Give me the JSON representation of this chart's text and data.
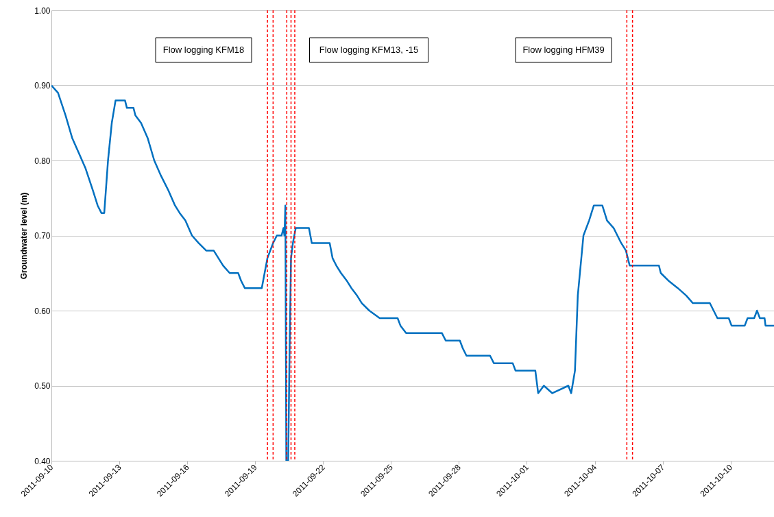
{
  "chart_data": {
    "type": "line",
    "ylabel": "Groundwater level (m)",
    "x": [
      "2011-09-10T00:00",
      "2011-09-10T07:00",
      "2011-09-10T15:00",
      "2011-09-10T22:00",
      "2011-09-11T05:00",
      "2011-09-11T12:00",
      "2011-09-11T20:00",
      "2011-09-12T01:00",
      "2011-09-12T05:00",
      "2011-09-12T08:00",
      "2011-09-12T12:00",
      "2011-09-12T16:00",
      "2011-09-12T20:00",
      "2011-09-13T06:00",
      "2011-09-13T08:00",
      "2011-09-13T15:00",
      "2011-09-13T17:00",
      "2011-09-13T23:00",
      "2011-09-14T06:00",
      "2011-09-14T13:00",
      "2011-09-14T20:00",
      "2011-09-15T04:00",
      "2011-09-15T11:00",
      "2011-09-15T16:00",
      "2011-09-15T22:00",
      "2011-09-16T05:00",
      "2011-09-16T12:00",
      "2011-09-16T20:00",
      "2011-09-17T04:00",
      "2011-09-17T09:00",
      "2011-09-17T14:00",
      "2011-09-17T21:00",
      "2011-09-18T06:00",
      "2011-09-18T09:00",
      "2011-09-18T13:00",
      "2011-09-19T07:00",
      "2011-09-19T13:00",
      "2011-09-19T19:00",
      "2011-09-19T23:00",
      "2011-09-20T04:00",
      "2011-09-20T06:00",
      "2011-09-20T07:00",
      "2011-09-20T08:00",
      "2011-09-20T09:00",
      "2011-09-20T11:00",
      "2011-09-20T12:30",
      "2011-09-20T14:00",
      "2011-09-20T16:00",
      "2011-09-20T19:00",
      "2011-09-21T09:00",
      "2011-09-21T12:00",
      "2011-09-22T07:00",
      "2011-09-22T10:00",
      "2011-09-22T14:00",
      "2011-09-22T19:00",
      "2011-09-23T01:00",
      "2011-09-23T06:00",
      "2011-09-23T12:00",
      "2011-09-23T17:00",
      "2011-09-24T01:00",
      "2011-09-24T12:00",
      "2011-09-25T07:00",
      "2011-09-25T10:00",
      "2011-09-25T16:00",
      "2011-09-27T06:00",
      "2011-09-27T10:00",
      "2011-09-28T01:00",
      "2011-09-28T04:00",
      "2011-09-28T08:00",
      "2011-09-29T09:00",
      "2011-09-29T13:00",
      "2011-09-30T09:00",
      "2011-09-30T12:00",
      "2011-10-01T09:00",
      "2011-10-01T12:00",
      "2011-10-01T18:00",
      "2011-10-02T03:00",
      "2011-10-02T20:00",
      "2011-10-02T23:00",
      "2011-10-03T03:00",
      "2011-10-03T06:00",
      "2011-10-03T12:00",
      "2011-10-03T18:00",
      "2011-10-03T23:00",
      "2011-10-04T08:00",
      "2011-10-04T13:00",
      "2011-10-04T20:00",
      "2011-10-05T04:00",
      "2011-10-05T09:00",
      "2011-10-05T13:00",
      "2011-10-06T20:00",
      "2011-10-06T22:00",
      "2011-10-07T06:00",
      "2011-10-07T16:00",
      "2011-10-08T01:00",
      "2011-10-08T08:00",
      "2011-10-09T02:00",
      "2011-10-09T06:00",
      "2011-10-09T10:00",
      "2011-10-09T22:00",
      "2011-10-10T01:00",
      "2011-10-10T15:00",
      "2011-10-10T18:00",
      "2011-10-11T01:00",
      "2011-10-11T04:00",
      "2011-10-11T07:00",
      "2011-10-11T12:00",
      "2011-10-11T13:00",
      "2011-10-11T22:00"
    ],
    "series": [
      {
        "color": "#0070c0",
        "values": [
          0.9,
          0.89,
          0.86,
          0.83,
          0.81,
          0.79,
          0.76,
          0.74,
          0.73,
          0.73,
          0.8,
          0.85,
          0.88,
          0.88,
          0.87,
          0.87,
          0.86,
          0.85,
          0.83,
          0.8,
          0.78,
          0.76,
          0.74,
          0.73,
          0.72,
          0.7,
          0.69,
          0.68,
          0.68,
          0.67,
          0.66,
          0.65,
          0.65,
          0.64,
          0.63,
          0.63,
          0.67,
          0.69,
          0.7,
          0.7,
          0.71,
          0.7,
          0.74,
          0.4,
          0.4,
          0.55,
          0.67,
          0.69,
          0.71,
          0.71,
          0.69,
          0.69,
          0.67,
          0.66,
          0.65,
          0.64,
          0.63,
          0.62,
          0.61,
          0.6,
          0.59,
          0.59,
          0.58,
          0.57,
          0.57,
          0.56,
          0.56,
          0.55,
          0.54,
          0.54,
          0.53,
          0.53,
          0.52,
          0.52,
          0.49,
          0.5,
          0.49,
          0.5,
          0.49,
          0.52,
          0.62,
          0.7,
          0.72,
          0.74,
          0.74,
          0.72,
          0.71,
          0.69,
          0.68,
          0.66,
          0.66,
          0.65,
          0.64,
          0.63,
          0.62,
          0.61,
          0.61,
          0.6,
          0.59,
          0.59,
          0.58,
          0.58,
          0.59,
          0.59,
          0.6,
          0.59,
          0.59,
          0.58,
          0.58
        ]
      }
    ],
    "xlim": [
      "2011-09-10",
      "2011-10-11T22:00"
    ],
    "xticks": [
      "2011-09-10",
      "2011-09-13",
      "2011-09-16",
      "2011-09-19",
      "2011-09-22",
      "2011-09-25",
      "2011-09-28",
      "2011-10-01",
      "2011-10-04",
      "2011-10-07",
      "2011-10-10"
    ],
    "ylim": [
      0.4,
      1.0
    ],
    "yticks": [
      {
        "value": 0.4,
        "label": "0.40"
      },
      {
        "value": 0.5,
        "label": "0.50"
      },
      {
        "value": 0.6,
        "label": "0.60"
      },
      {
        "value": 0.7,
        "label": "0.70"
      },
      {
        "value": 0.8,
        "label": "0.80"
      },
      {
        "value": 0.9,
        "label": "0.90"
      },
      {
        "value": 1.0,
        "label": "1.00"
      }
    ],
    "ref_lines": [
      {
        "axis": "x",
        "value": "2011-09-19T13:00",
        "color": "#ff0000",
        "line_style": "dashed"
      },
      {
        "axis": "x",
        "value": "2011-09-19T19:00",
        "color": "#ff0000",
        "line_style": "dashed"
      },
      {
        "axis": "x",
        "value": "2011-09-20T09:30",
        "color": "#ff0000",
        "line_style": "dashed"
      },
      {
        "axis": "x",
        "value": "2011-09-20T14:00",
        "color": "#ff0000",
        "line_style": "dashed"
      },
      {
        "axis": "x",
        "value": "2011-09-20T18:00",
        "color": "#ff0000",
        "line_style": "dashed"
      },
      {
        "axis": "x",
        "value": "2011-10-05T10:00",
        "color": "#ff0000",
        "line_style": "dashed"
      },
      {
        "axis": "x",
        "value": "2011-10-05T16:00",
        "color": "#ff0000",
        "line_style": "dashed"
      }
    ],
    "annotations": [
      "Flow logging KFM18",
      "Flow logging KFM13, -15",
      "Flow logging HFM39"
    ],
    "grid": "y",
    "line_style": "solid",
    "marker": "none"
  }
}
